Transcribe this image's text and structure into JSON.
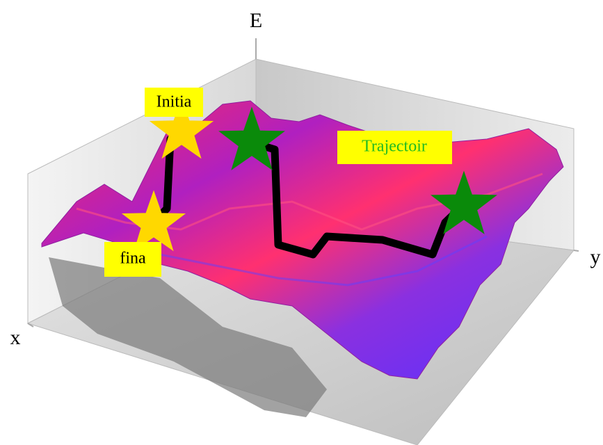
{
  "axes": {
    "e": "E",
    "x": "x",
    "y": "y"
  },
  "labels": {
    "initial": "Initia",
    "final": "fina",
    "trajectory": "Trajectoir"
  }
}
